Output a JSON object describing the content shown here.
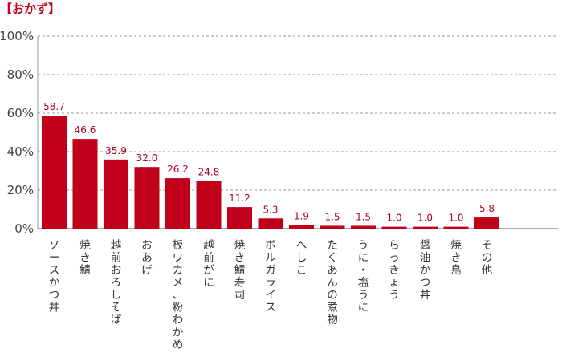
{
  "chart_data": {
    "type": "bar",
    "title": "【おかず】",
    "categories": [
      "ソースかつ丼",
      "焼き鯖",
      "越前おろしそば",
      "おあげ",
      "板ワカメ、粉わかめ",
      "越前がに",
      "焼き鯖寿司",
      "ボルガライス",
      "へしこ",
      "たくあんの煮物",
      "うに・塩うに",
      "らっきょう",
      "醤油かつ丼",
      "焼き鳥",
      "その他"
    ],
    "values": [
      58.7,
      46.6,
      35.9,
      32.0,
      26.2,
      24.8,
      11.2,
      5.3,
      1.9,
      1.5,
      1.5,
      1.0,
      1.0,
      1.0,
      5.8
    ],
    "value_labels": [
      "58.7",
      "46.6",
      "35.9",
      "32.0",
      "26.2",
      "24.8",
      "11.2",
      "5.3",
      "1.9",
      "1.5",
      "1.5",
      "1.0",
      "1.0",
      "1.0",
      "5.8"
    ],
    "yticks": [
      0,
      20,
      40,
      60,
      80,
      100
    ],
    "ytick_labels": [
      "0%",
      "20%",
      "40%",
      "60%",
      "80%",
      "100%"
    ],
    "ylim": [
      0,
      100
    ],
    "grid": true,
    "bar_color": "#c0001a",
    "label_color": "#b00020",
    "title_color": "#c0001a"
  }
}
